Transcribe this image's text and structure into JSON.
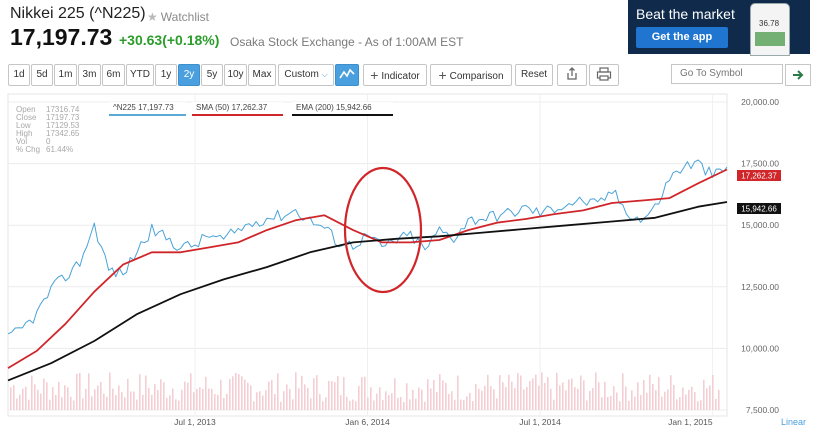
{
  "header": {
    "title": "Nikkei 225 (^N225)",
    "watchlist": "Watchlist",
    "price": "17,197.73",
    "change": "+30.63(+0.18%)",
    "exchange": "Osaka Stock Exchange - As of 1:00AM EST"
  },
  "ad": {
    "title": "Beat the market",
    "button": "Get the app",
    "phone_value": "36.78"
  },
  "toolbar": {
    "ranges": [
      "1d",
      "5d",
      "1m",
      "3m",
      "6m",
      "YTD",
      "1y",
      "2y",
      "5y",
      "10y",
      "Max"
    ],
    "active_range": "2y",
    "custom": "Custom",
    "indicator": "Indicator",
    "comparison": "Comparison",
    "reset": "Reset",
    "symbol_placeholder": "Go To Symbol"
  },
  "stats": {
    "open": {
      "label": "Open",
      "value": "17316.74"
    },
    "close": {
      "label": "Close",
      "value": "17197.73"
    },
    "low": {
      "label": "Low",
      "value": "17129.53"
    },
    "high": {
      "label": "High",
      "value": "17342.65"
    },
    "vol": {
      "label": "Vol",
      "value": "0"
    },
    "pchg": {
      "label": "% Chg",
      "value": "61.44%"
    }
  },
  "legend": {
    "price": "^N225 17,197.73",
    "sma": "SMA (50) 17,262.37",
    "ema": "EMA (200) 15,942.66"
  },
  "chart_data": {
    "type": "line",
    "yticks": [
      "20,000.00",
      "17,500.00",
      "15,000.00",
      "12,500.00",
      "10,000.00",
      "7,500.00"
    ],
    "ytick_values": [
      20000,
      17500,
      15000,
      12500,
      10000,
      7500
    ],
    "ylim": [
      7500,
      20000
    ],
    "xticks": [
      "Jul 1, 2013",
      "Jan 6, 2014",
      "Jul 1, 2014",
      "Jan 1, 2015"
    ],
    "scale_label": "Linear",
    "price_tag_sma": "17,262.37",
    "price_tag_ema": "15,942.66",
    "series": [
      {
        "name": "^N225",
        "color": "#4aa3d8",
        "x": [
          0,
          2,
          4,
          6,
          8,
          10,
          12,
          14,
          16,
          18,
          20,
          22,
          24,
          26,
          28,
          30,
          32,
          34,
          36,
          38,
          40,
          42,
          44,
          46,
          48,
          50,
          52,
          54,
          56,
          58,
          60,
          62,
          64,
          66,
          68,
          70,
          72,
          74,
          76,
          78,
          80,
          82,
          84,
          86,
          88,
          90,
          92,
          94,
          96,
          98,
          100
        ],
        "values": [
          10400,
          10800,
          11400,
          12400,
          12900,
          13500,
          15000,
          13200,
          13000,
          14000,
          14800,
          14500,
          14100,
          14200,
          14600,
          14400,
          14800,
          15100,
          15300,
          15400,
          15600,
          15200,
          14900,
          14300,
          14200,
          14600,
          14100,
          14400,
          14600,
          14000,
          14800,
          14500,
          15200,
          15300,
          15400,
          15500,
          15700,
          15500,
          15700,
          15900,
          16000,
          15800,
          16400,
          15600,
          15200,
          15700,
          16900,
          17400,
          17500,
          17000,
          17300
        ]
      },
      {
        "name": "SMA (50)",
        "color": "#d0262a",
        "x": [
          0,
          4,
          8,
          12,
          16,
          20,
          24,
          28,
          32,
          36,
          40,
          44,
          48,
          52,
          56,
          60,
          64,
          68,
          72,
          76,
          80,
          84,
          88,
          92,
          96,
          100
        ],
        "values": [
          9200,
          9900,
          11000,
          12300,
          13400,
          13900,
          13900,
          14100,
          14300,
          14800,
          15200,
          15400,
          14800,
          14300,
          14300,
          14400,
          14800,
          15100,
          15250,
          15450,
          15600,
          15900,
          16000,
          16100,
          16700,
          17262
        ]
      },
      {
        "name": "EMA (200)",
        "color": "#111111",
        "x": [
          0,
          6,
          12,
          18,
          24,
          30,
          36,
          42,
          48,
          54,
          60,
          66,
          72,
          78,
          84,
          90,
          96,
          100
        ],
        "values": [
          8700,
          9400,
          10300,
          11400,
          12200,
          12800,
          13300,
          13900,
          14300,
          14450,
          14550,
          14700,
          14850,
          15000,
          15150,
          15300,
          15750,
          15943
        ]
      }
    ]
  }
}
